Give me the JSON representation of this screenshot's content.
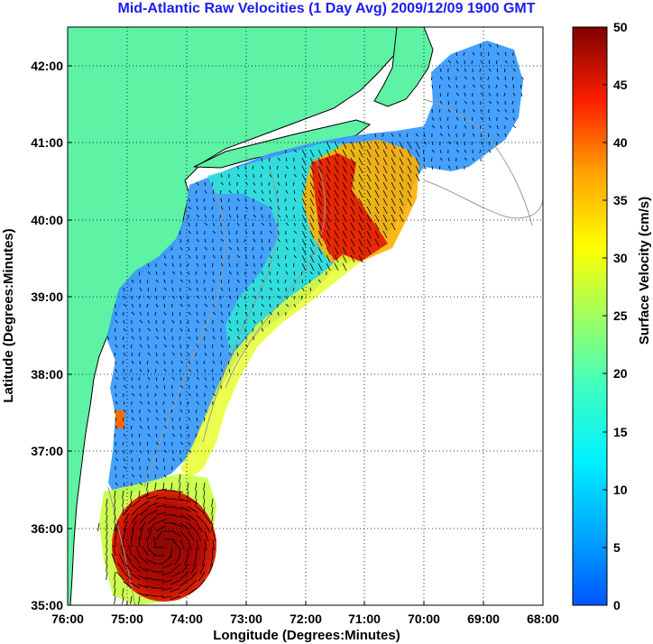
{
  "title": "Mid-Atlantic Raw Velocities (1 Day Avg) 2009/12/09 1900 GMT",
  "x_axis": {
    "label": "Longitude (Degrees:Minutes)",
    "ticks": [
      "76:00",
      "75:00",
      "74:00",
      "73:00",
      "72:00",
      "71:00",
      "70:00",
      "69:00",
      "68:00"
    ]
  },
  "y_axis": {
    "label": "Latitude (Degrees:Minutes)",
    "ticks": [
      "35:00",
      "36:00",
      "37:00",
      "38:00",
      "39:00",
      "40:00",
      "41:00",
      "42:00"
    ]
  },
  "colorbar": {
    "label": "Surface Velocity (cm/s)",
    "ticks": [
      "0",
      "5",
      "10",
      "15",
      "20",
      "25",
      "30",
      "35",
      "40",
      "45",
      "50"
    ],
    "range": [
      0,
      50
    ],
    "colormap": "jet"
  },
  "map_extent": {
    "lon": [
      -76,
      -68
    ],
    "lat": [
      35,
      42.5
    ]
  },
  "colors": {
    "land": "#5df2a4",
    "title": "#1c1cf0",
    "grid": "#000000",
    "coastline": "#000000",
    "bathymetry": "#9a9a9a"
  }
}
